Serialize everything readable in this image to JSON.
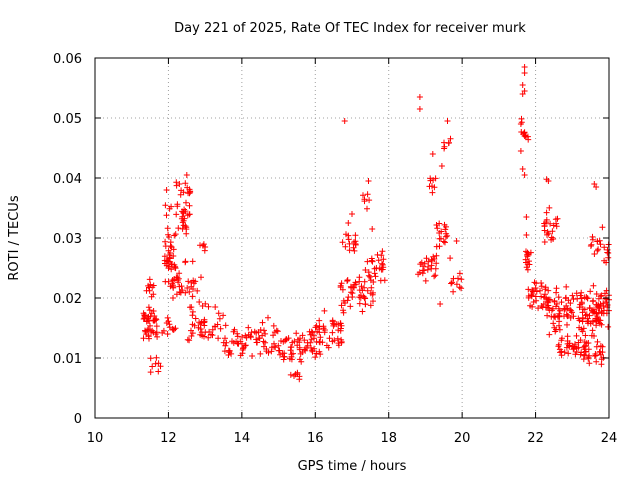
{
  "chart_data": {
    "type": "scatter",
    "title": "Day 221 of 2025, Rate Of TEC Index for receiver murk",
    "xlabel": "GPS time / hours",
    "ylabel": "ROTI / TECUs",
    "xlim": [
      10,
      24
    ],
    "ylim": [
      0,
      0.06
    ],
    "x_ticks": [
      10,
      12,
      14,
      16,
      18,
      20,
      22,
      24
    ],
    "x_tick_labels": [
      "10",
      "12",
      "14",
      "16",
      "18",
      "20",
      "22",
      "24"
    ],
    "y_ticks": [
      0,
      0.01,
      0.02,
      0.03,
      0.04,
      0.05,
      0.06
    ],
    "y_tick_labels": [
      "0",
      "0.01",
      "0.02",
      "0.03",
      "0.04",
      "0.05",
      "0.06"
    ],
    "grid": true,
    "marker": "+",
    "series_color": "#ff0000",
    "clusters": [
      {
        "x_range": [
          11.3,
          11.7
        ],
        "y_center": 0.016,
        "y_spread": 0.005,
        "n": 40
      },
      {
        "x_range": [
          11.4,
          11.6
        ],
        "y_center": 0.022,
        "y_spread": 0.003,
        "n": 10
      },
      {
        "x_range": [
          11.5,
          11.8
        ],
        "y_center": 0.009,
        "y_spread": 0.002,
        "n": 8
      },
      {
        "x_range": [
          11.9,
          12.2
        ],
        "y_center": 0.027,
        "y_spread": 0.006,
        "n": 35
      },
      {
        "x_range": [
          11.9,
          12.6
        ],
        "y_center": 0.034,
        "y_spread": 0.004,
        "n": 30
      },
      {
        "x_range": [
          12.2,
          12.6
        ],
        "y_center": 0.038,
        "y_spread": 0.002,
        "n": 12
      },
      {
        "x_range": [
          12.0,
          12.9
        ],
        "y_center": 0.022,
        "y_spread": 0.005,
        "n": 40
      },
      {
        "x_range": [
          11.8,
          12.2
        ],
        "y_center": 0.015,
        "y_spread": 0.003,
        "n": 12
      },
      {
        "x_range": [
          12.5,
          13.5
        ],
        "y_center": 0.016,
        "y_spread": 0.005,
        "n": 45
      },
      {
        "x_range": [
          12.8,
          13.0
        ],
        "y_center": 0.0285,
        "y_spread": 0.001,
        "n": 4
      },
      {
        "x_range": [
          13.5,
          15.0
        ],
        "y_center": 0.013,
        "y_spread": 0.004,
        "n": 70
      },
      {
        "x_range": [
          15.0,
          16.0
        ],
        "y_center": 0.012,
        "y_spread": 0.004,
        "n": 55
      },
      {
        "x_range": [
          15.3,
          15.6
        ],
        "y_center": 0.007,
        "y_spread": 0.0015,
        "n": 8
      },
      {
        "x_range": [
          16.0,
          16.8
        ],
        "y_center": 0.014,
        "y_spread": 0.005,
        "n": 45
      },
      {
        "x_range": [
          16.6,
          17.6
        ],
        "y_center": 0.021,
        "y_spread": 0.004,
        "n": 50
      },
      {
        "x_range": [
          16.7,
          17.2
        ],
        "y_center": 0.029,
        "y_spread": 0.003,
        "n": 14
      },
      {
        "x_range": [
          17.2,
          17.9
        ],
        "y_center": 0.025,
        "y_spread": 0.004,
        "n": 25
      },
      {
        "x_range": [
          17.3,
          17.5
        ],
        "y_center": 0.036,
        "y_spread": 0.002,
        "n": 6
      },
      {
        "x_range": [
          18.8,
          19.3
        ],
        "y_center": 0.025,
        "y_spread": 0.003,
        "n": 25
      },
      {
        "x_range": [
          19.1,
          19.3
        ],
        "y_center": 0.039,
        "y_spread": 0.002,
        "n": 8
      },
      {
        "x_range": [
          19.3,
          19.7
        ],
        "y_center": 0.03,
        "y_spread": 0.004,
        "n": 18
      },
      {
        "x_range": [
          19.5,
          19.7
        ],
        "y_center": 0.046,
        "y_spread": 0.002,
        "n": 6
      },
      {
        "x_range": [
          19.7,
          20.0
        ],
        "y_center": 0.023,
        "y_spread": 0.003,
        "n": 10
      },
      {
        "x_range": [
          21.6,
          21.8
        ],
        "y_center": 0.048,
        "y_spread": 0.004,
        "n": 10
      },
      {
        "x_range": [
          21.7,
          21.9
        ],
        "y_center": 0.026,
        "y_spread": 0.004,
        "n": 14
      },
      {
        "x_range": [
          21.8,
          22.4
        ],
        "y_center": 0.02,
        "y_spread": 0.004,
        "n": 40
      },
      {
        "x_range": [
          22.2,
          22.6
        ],
        "y_center": 0.032,
        "y_spread": 0.004,
        "n": 22
      },
      {
        "x_range": [
          22.3,
          23.2
        ],
        "y_center": 0.018,
        "y_spread": 0.005,
        "n": 60
      },
      {
        "x_range": [
          22.6,
          23.4
        ],
        "y_center": 0.012,
        "y_spread": 0.003,
        "n": 40
      },
      {
        "x_range": [
          23.2,
          24.0
        ],
        "y_center": 0.018,
        "y_spread": 0.005,
        "n": 90
      },
      {
        "x_range": [
          23.5,
          24.0
        ],
        "y_center": 0.028,
        "y_spread": 0.005,
        "n": 20
      },
      {
        "x_range": [
          23.3,
          23.9
        ],
        "y_center": 0.011,
        "y_spread": 0.003,
        "n": 25
      }
    ],
    "points": [
      [
        16.8,
        0.0495
      ],
      [
        18.85,
        0.0535
      ],
      [
        18.85,
        0.0515
      ],
      [
        19.6,
        0.0495
      ],
      [
        21.7,
        0.0585
      ],
      [
        21.7,
        0.0575
      ],
      [
        21.65,
        0.0555
      ],
      [
        21.7,
        0.0545
      ],
      [
        21.65,
        0.054
      ],
      [
        21.6,
        0.049
      ],
      [
        21.7,
        0.047
      ],
      [
        21.6,
        0.0445
      ],
      [
        21.65,
        0.0415
      ],
      [
        21.7,
        0.0405
      ],
      [
        21.75,
        0.0335
      ],
      [
        21.75,
        0.0305
      ],
      [
        22.3,
        0.0398
      ],
      [
        22.35,
        0.0395
      ],
      [
        23.6,
        0.039
      ],
      [
        23.65,
        0.0385
      ],
      [
        19.2,
        0.044
      ],
      [
        19.45,
        0.042
      ],
      [
        19.4,
        0.019
      ],
      [
        19.85,
        0.0295
      ],
      [
        16.9,
        0.0325
      ],
      [
        17.0,
        0.034
      ],
      [
        17.45,
        0.0395
      ],
      [
        17.55,
        0.0315
      ],
      [
        12.5,
        0.0405
      ],
      [
        12.3,
        0.039
      ],
      [
        11.95,
        0.038
      ],
      [
        13.0,
        0.0285
      ]
    ]
  }
}
